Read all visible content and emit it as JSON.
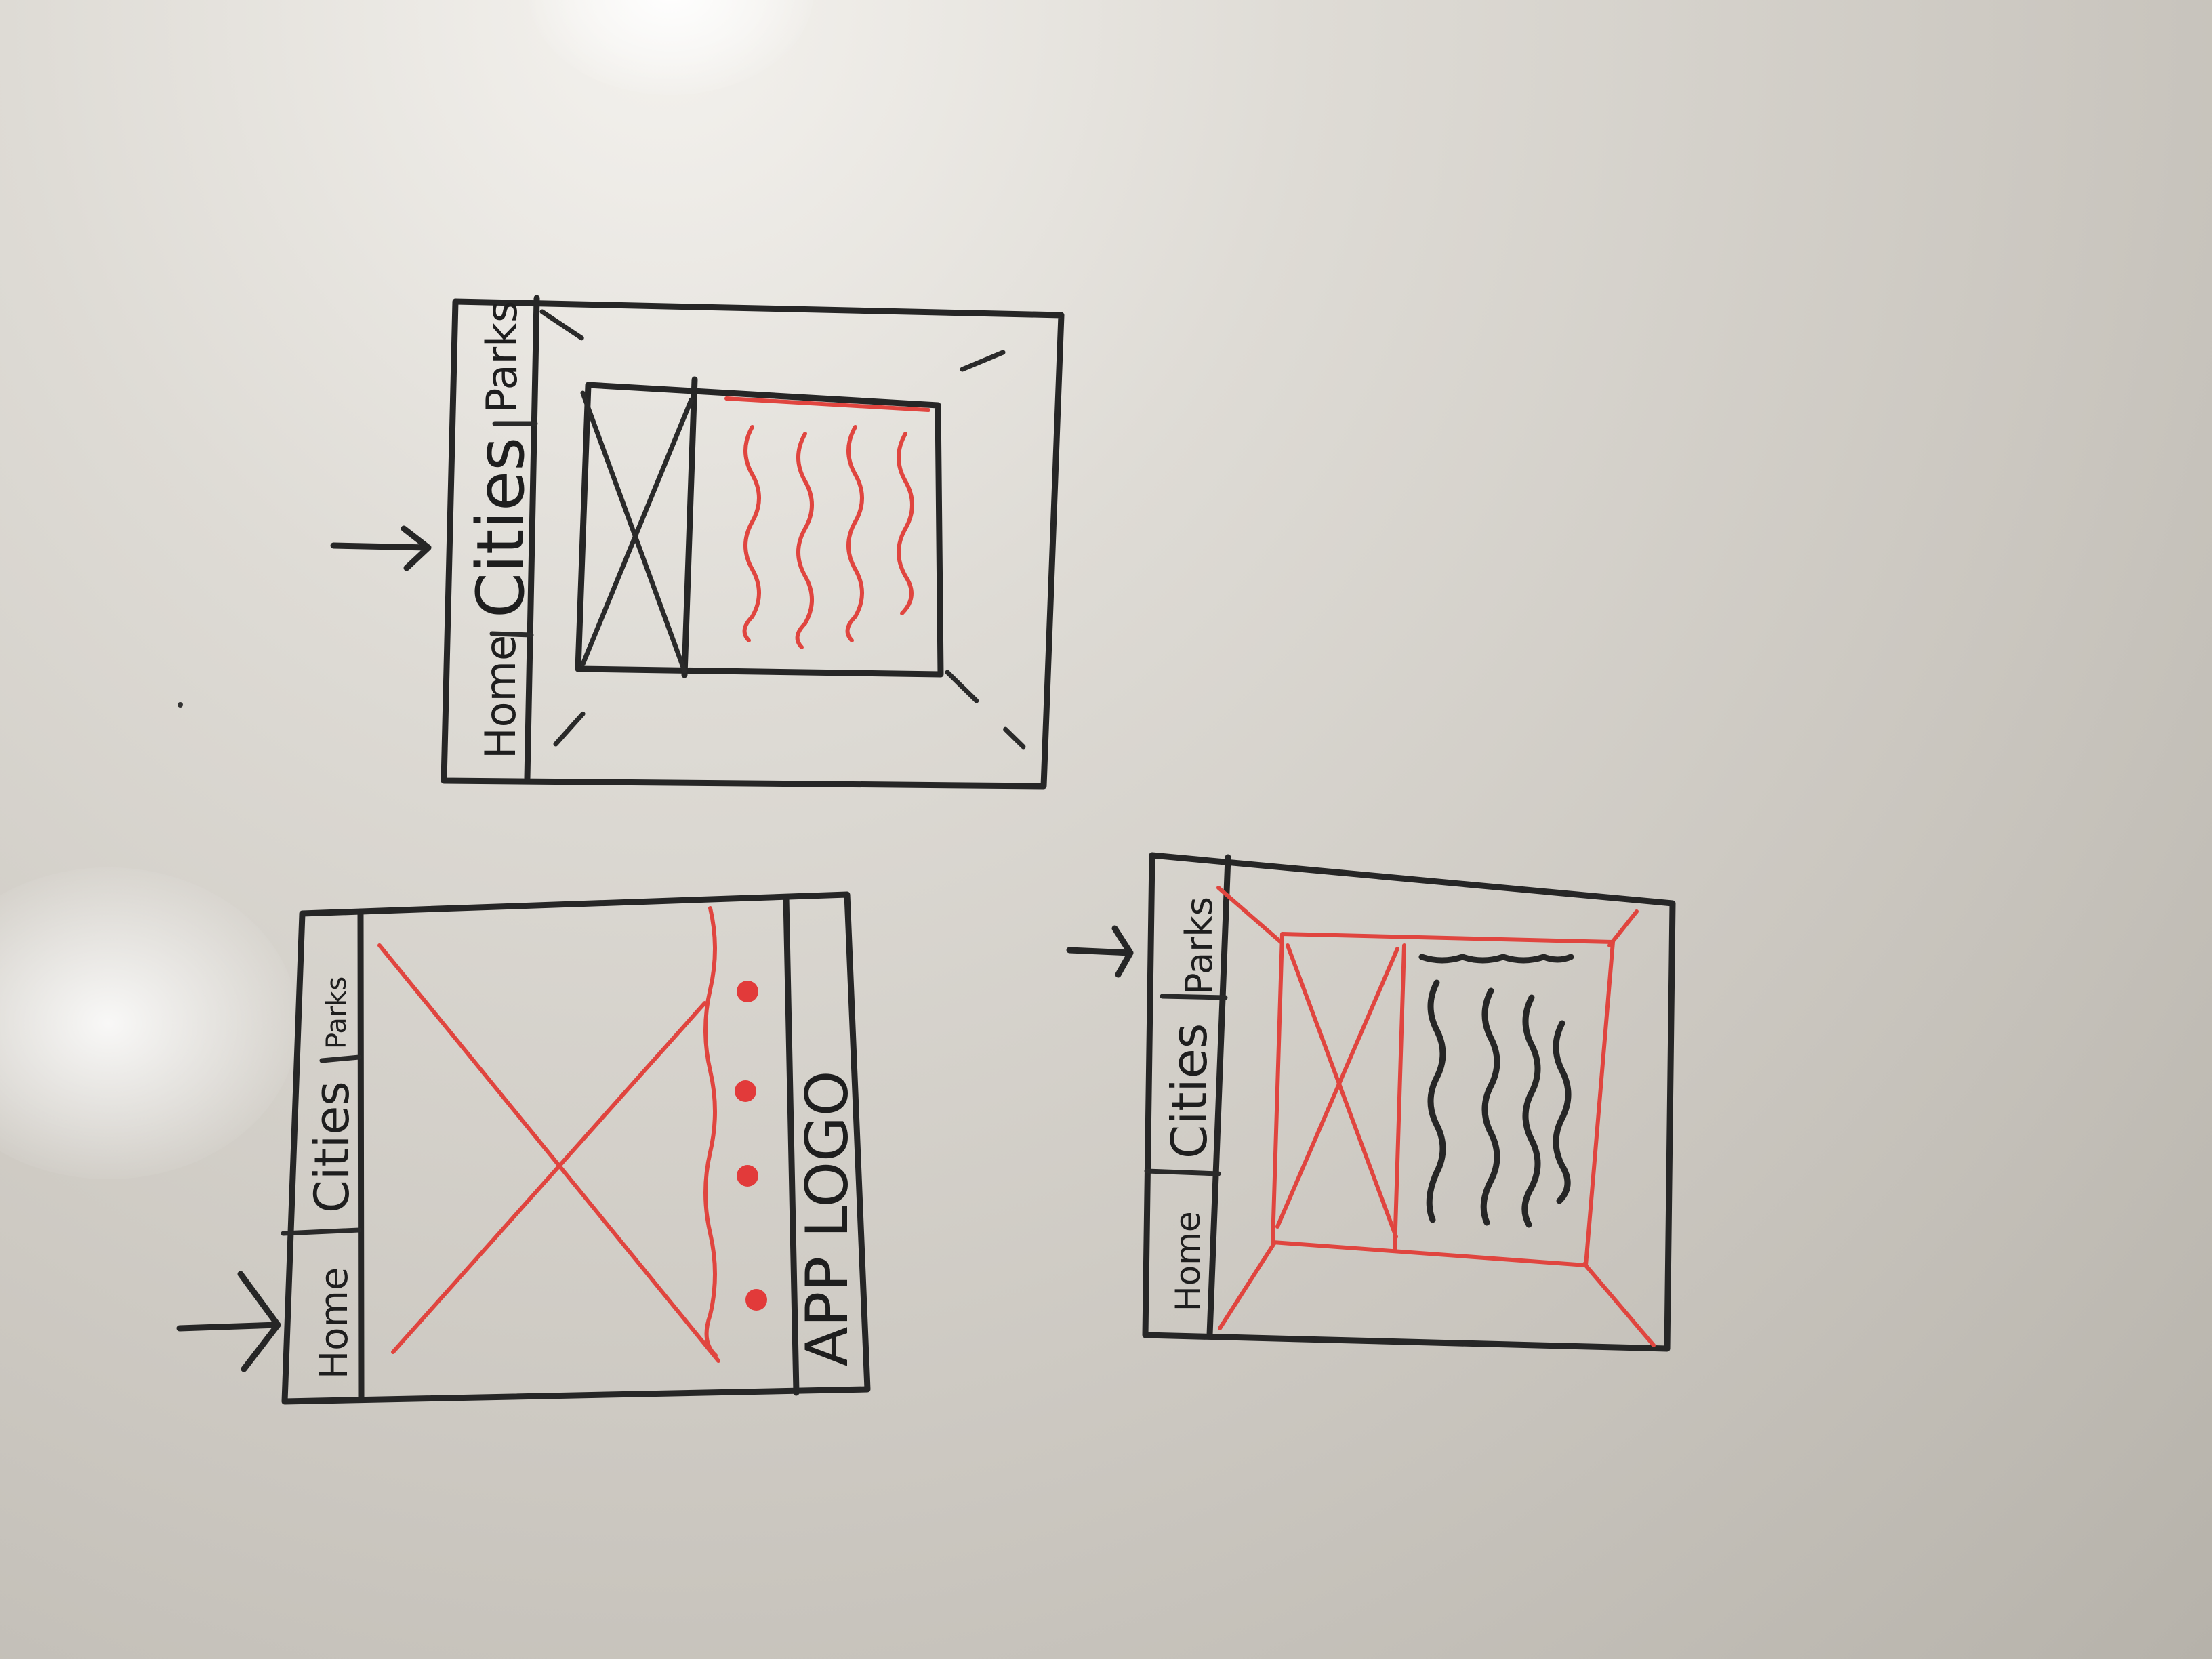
{
  "sketch1": {
    "tabs": [
      "Home",
      "Cities",
      "Parks"
    ],
    "logo_text": "APP LOGO"
  },
  "sketch2": {
    "tabs": [
      "Home",
      "Cities",
      "Parks"
    ]
  },
  "sketch3": {
    "tabs": [
      "Home",
      "Cities",
      "Parks"
    ]
  },
  "colors": {
    "black_marker": "#262626",
    "red_marker": "#e0453f"
  }
}
